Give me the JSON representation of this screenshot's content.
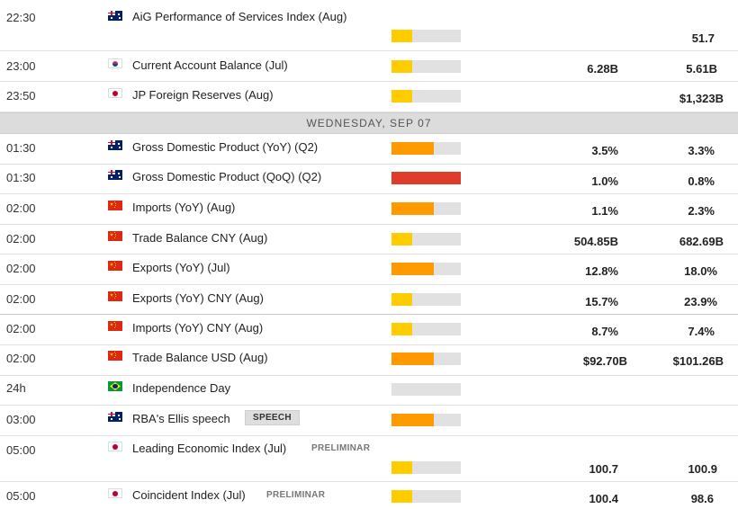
{
  "colors": {
    "low": "#ffcc00",
    "medium": "#ff9900",
    "high": "#e03c2a",
    "track": "#e1e1e1"
  },
  "day_header": "WEDNESDAY, SEP 07",
  "events": [
    {
      "time": "22:30",
      "flag": "au-flag-icon",
      "name": "AiG Performance of Services Index (Aug)",
      "impact": "low",
      "actual": "",
      "previous": "51.7"
    },
    {
      "time": "23:00",
      "flag": "kr-flag-icon",
      "name": "Current Account Balance (Jul)",
      "impact": "low",
      "actual": "6.28B",
      "previous": "5.61B"
    },
    {
      "time": "23:50",
      "flag": "jp-flag-icon",
      "name": "JP Foreign Reserves (Aug)",
      "impact": "low",
      "actual": "",
      "previous": "$1,323B"
    },
    {
      "time": "01:30",
      "flag": "au-flag-icon",
      "name": "Gross Domestic Product (YoY) (Q2)",
      "impact": "medium",
      "actual": "3.5%",
      "previous": "3.3%"
    },
    {
      "time": "01:30",
      "flag": "au-flag-icon",
      "name": "Gross Domestic Product (QoQ) (Q2)",
      "impact": "high",
      "actual": "1.0%",
      "previous": "0.8%"
    },
    {
      "time": "02:00",
      "flag": "cn-flag-icon",
      "name": "Imports (YoY) (Aug)",
      "impact": "medium",
      "actual": "1.1%",
      "previous": "2.3%"
    },
    {
      "time": "02:00",
      "flag": "cn-flag-icon",
      "name": "Trade Balance CNY (Aug)",
      "impact": "low",
      "actual": "504.85B",
      "previous": "682.69B"
    },
    {
      "time": "02:00",
      "flag": "cn-flag-icon",
      "name": "Exports (YoY) (Jul)",
      "impact": "medium",
      "actual": "12.8%",
      "previous": "18.0%"
    },
    {
      "time": "02:00",
      "flag": "cn-flag-icon",
      "name": "Exports (YoY) CNY (Aug)",
      "impact": "low",
      "actual": "15.7%",
      "previous": "23.9%"
    },
    {
      "time": "02:00",
      "flag": "cn-flag-icon",
      "name": "Imports (YoY) CNY (Aug)",
      "impact": "low",
      "actual": "8.7%",
      "previous": "7.4%"
    },
    {
      "time": "02:00",
      "flag": "cn-flag-icon",
      "name": "Trade Balance USD (Aug)",
      "impact": "medium",
      "actual": "$92.70B",
      "previous": "$101.26B"
    },
    {
      "time": "24h",
      "flag": "br-flag-icon",
      "name": "Independence Day",
      "impact": "none",
      "actual": "",
      "previous": ""
    },
    {
      "time": "03:00",
      "flag": "au-flag-icon",
      "name": "RBA's Ellis speech",
      "tag": "SPEECH",
      "impact": "medium",
      "actual": "",
      "previous": ""
    },
    {
      "time": "05:00",
      "flag": "jp-flag-icon",
      "name": "Leading Economic Index (Jul)",
      "tag": "PRELIMINAR",
      "impact": "low",
      "actual": "100.7",
      "previous": "100.9"
    },
    {
      "time": "05:00",
      "flag": "jp-flag-icon",
      "name": "Coincident Index (Jul)",
      "tag": "PRELIMINAR",
      "impact": "low",
      "actual": "100.4",
      "previous": "98.6"
    }
  ]
}
